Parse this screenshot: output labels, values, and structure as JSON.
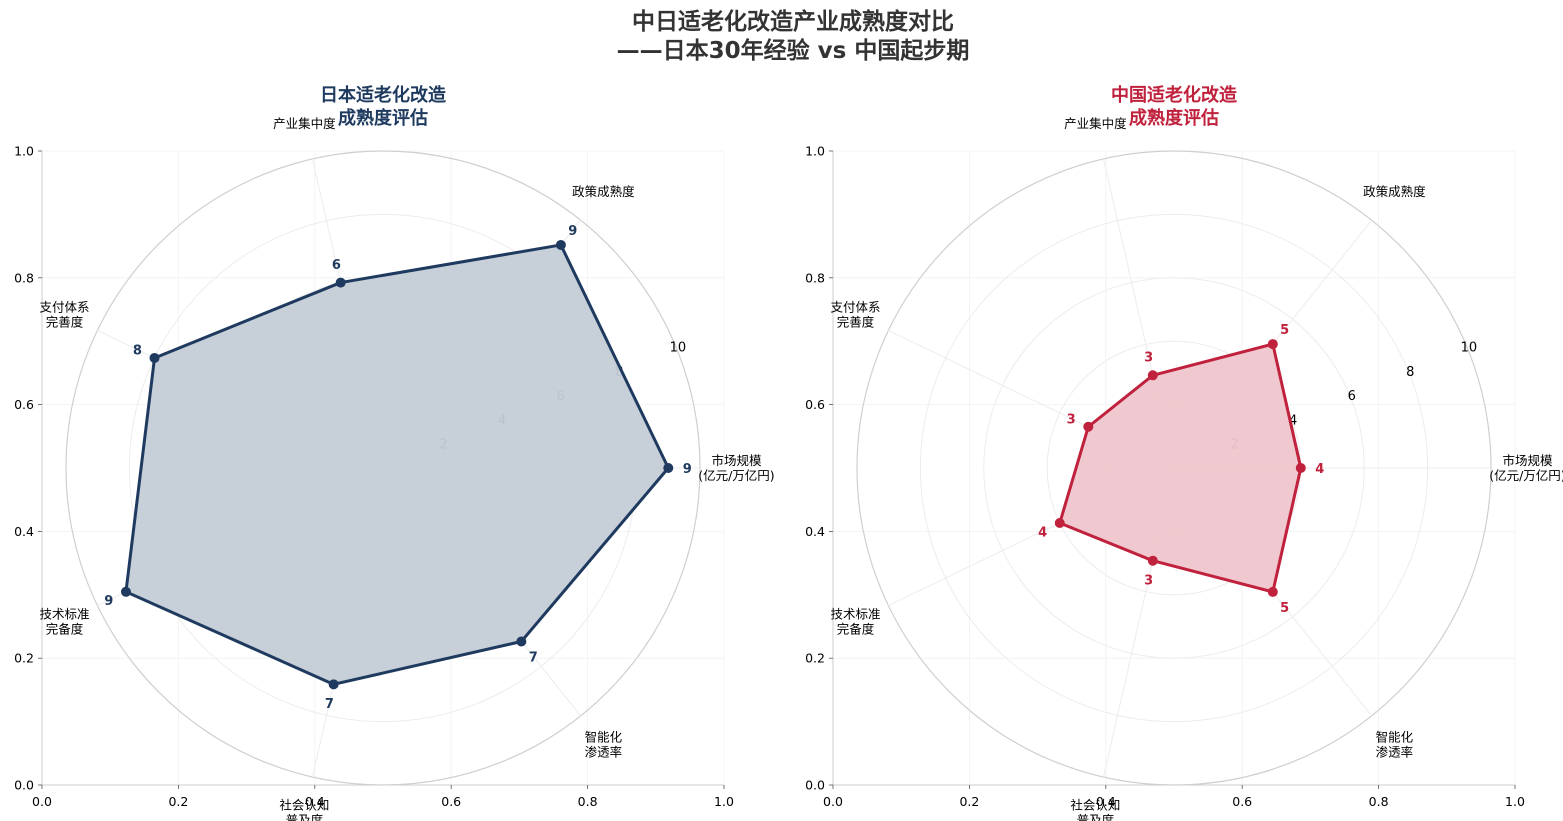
{
  "title_line1": "中日适老化改造产业成熟度对比",
  "title_line2": "——日本30年经验 vs 中国起步期",
  "chart_data": [
    {
      "type": "radar",
      "title_line1": "日本适老化改造",
      "title_line2": "成熟度评估",
      "color": "#1f3a5f",
      "fill_color": "#c4ccd7",
      "categories": [
        [
          "市场规模",
          "(亿元/万亿円)"
        ],
        [
          "政策成熟度"
        ],
        [
          "产业集中度"
        ],
        [
          "支付体系",
          "完善度"
        ],
        [
          "技术标准",
          "完备度"
        ],
        [
          "社会认知",
          "普及度"
        ],
        [
          "智能化",
          "渗透率"
        ]
      ],
      "values": [
        9,
        9,
        6,
        8,
        9,
        7,
        7
      ],
      "value_labels": [
        "9",
        "9",
        "6",
        "8",
        "9",
        "7",
        "7"
      ],
      "radial_ticks": [
        "2",
        "4",
        "6",
        "8",
        "10"
      ],
      "rlim": [
        0,
        10
      ],
      "x_ticks": [
        "0.0",
        "0.2",
        "0.4",
        "0.6",
        "0.8",
        "1.0"
      ],
      "y_ticks": [
        "0.0",
        "0.2",
        "0.4",
        "0.6",
        "0.8",
        "1.0"
      ]
    },
    {
      "type": "radar",
      "title_line1": "中国适老化改造",
      "title_line2": "成熟度评估",
      "color": "#c0213c",
      "fill_color": "#efc5cc",
      "categories": [
        [
          "市场规模",
          "(亿元/万亿円)"
        ],
        [
          "政策成熟度"
        ],
        [
          "产业集中度"
        ],
        [
          "支付体系",
          "完善度"
        ],
        [
          "技术标准",
          "完备度"
        ],
        [
          "社会认知",
          "普及度"
        ],
        [
          "智能化",
          "渗透率"
        ]
      ],
      "values": [
        4,
        5,
        3,
        3,
        4,
        3,
        5
      ],
      "value_labels": [
        "4",
        "5",
        "3",
        "3",
        "4",
        "3",
        "5"
      ],
      "radial_ticks": [
        "2",
        "4",
        "6",
        "8",
        "10"
      ],
      "rlim": [
        0,
        10
      ],
      "x_ticks": [
        "0.0",
        "0.2",
        "0.4",
        "0.6",
        "0.8",
        "1.0"
      ],
      "y_ticks": [
        "0.0",
        "0.2",
        "0.4",
        "0.6",
        "0.8",
        "1.0"
      ]
    }
  ]
}
